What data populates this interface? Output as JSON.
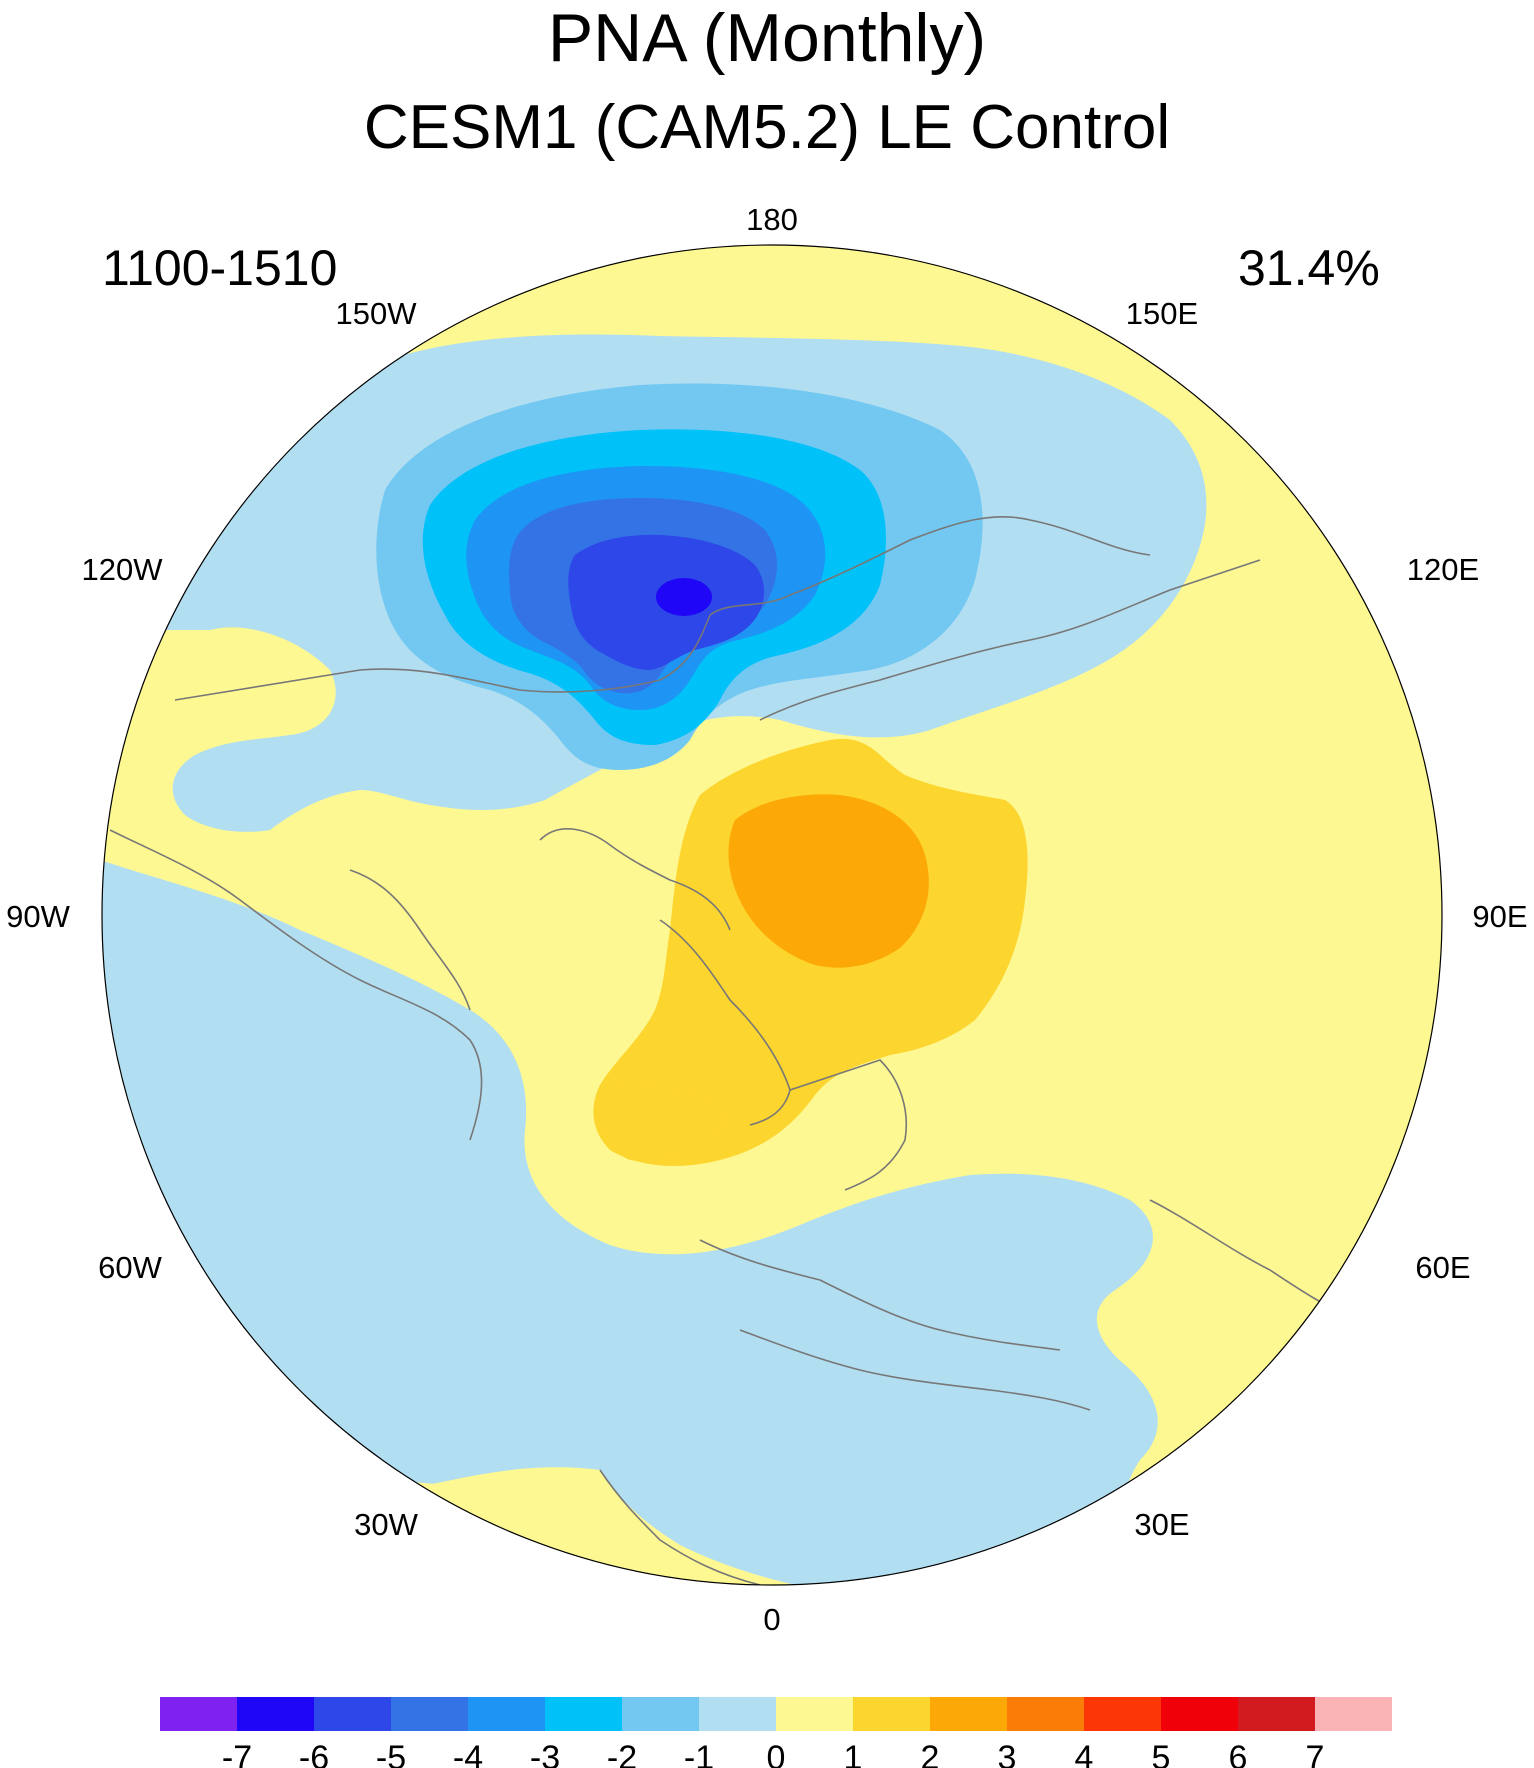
{
  "title": "PNA (Monthly)",
  "subtitle": "CESM1 (CAM5.2) LE Control",
  "period": "1100-1510",
  "variance_explained": "31.4%",
  "map": {
    "projection": "north-polar-stereographic",
    "longitude_labels": [
      "180",
      "150E",
      "120E",
      "90E",
      "60E",
      "30E",
      "0",
      "30W",
      "60W",
      "90W",
      "120W",
      "150W"
    ],
    "coastline_color": "#777777",
    "features": [
      {
        "name": "negative-center-pacific",
        "level_min": -6
      },
      {
        "name": "positive-center-arctic",
        "level_max": 3
      }
    ]
  },
  "colorbar": {
    "labels": [
      "-7",
      "-6",
      "-5",
      "-4",
      "-3",
      "-2",
      "-1",
      "0",
      "1",
      "2",
      "3",
      "4",
      "5",
      "6",
      "7"
    ],
    "colors": [
      "#7f22f0",
      "#1f06f7",
      "#2d47e8",
      "#3473e6",
      "#1e95f5",
      "#00c1f8",
      "#73c8f2",
      "#b2def1",
      "#fef892",
      "#fdd52f",
      "#fca806",
      "#fb7c06",
      "#fc3705",
      "#f00008",
      "#d11b1e",
      "#fbb4b5"
    ]
  }
}
